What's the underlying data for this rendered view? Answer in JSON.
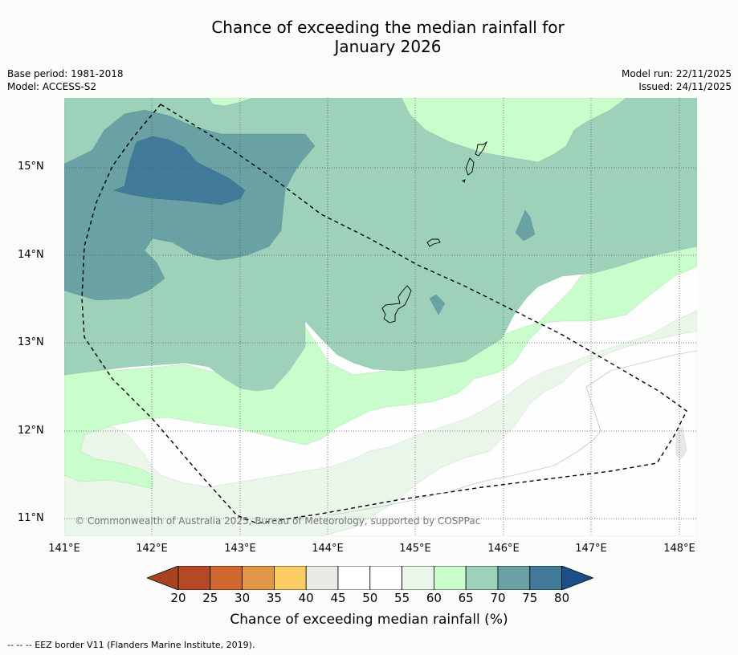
{
  "title_line1": "Chance of exceeding the median rainfall for",
  "title_line2": "January 2026",
  "base_period": "Base period: 1981-2018",
  "model": "Model: ACCESS-S2",
  "model_run": "Model run: 22/11/2025",
  "issued": "Issued: 24/11/2025",
  "copyright": "© Commonwealth of Australia 2025, Bureau of Meteorology, supported by COSPPac",
  "lat_labels": [
    "15°N",
    "14°N",
    "13°N",
    "12°N",
    "11°N"
  ],
  "lon_labels": [
    "141°E",
    "142°E",
    "143°E",
    "144°E",
    "145°E",
    "146°E",
    "147°E",
    "148°E"
  ],
  "colorbar": {
    "ticks": [
      "20",
      "25",
      "30",
      "35",
      "40",
      "45",
      "50",
      "55",
      "60",
      "65",
      "70",
      "75",
      "80"
    ],
    "label": "Chance of exceeding median rainfall (%)",
    "colors": [
      "#b34a25",
      "#d06832",
      "#e29647",
      "#fdcd65",
      "#eae9e4",
      "#ffffff",
      "#ffffff",
      "#ebf6ea",
      "#c9fdcb",
      "#9dd1b9",
      "#6aa1a5",
      "#427b99"
    ],
    "under_color": "#a84322",
    "over_color": "#1b4f88"
  },
  "footnote": "--  --  -- EEZ border V11 (Flanders Marine Institute, 2019)."
}
